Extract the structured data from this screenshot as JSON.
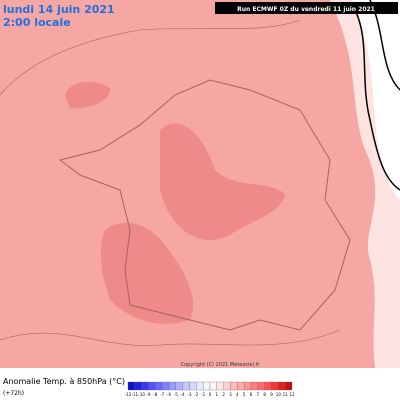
{
  "header": {
    "date": "lundi 14 juin 2021",
    "time": "2:00 locale",
    "run": "Run ECMWF 0Z du vendredi 11 juin 2021"
  },
  "map": {
    "copyright": "Copyright (C) 2021 Meteociel.fr"
  },
  "footer": {
    "title": "Anomalie Temp. à 850hPa (°C)",
    "lead": "(+72h)"
  },
  "legend": {
    "ticks": [
      -12,
      -11,
      -10,
      -9,
      -8,
      -7,
      -6,
      -5,
      -4,
      -3,
      -2,
      -1,
      0,
      1,
      2,
      3,
      4,
      5,
      6,
      7,
      8,
      9,
      10,
      11,
      12
    ],
    "colors": [
      "#1010c8",
      "#2020e0",
      "#3838f0",
      "#5050ff",
      "#6868ff",
      "#8080ff",
      "#9898ff",
      "#b0b0ff",
      "#c8c8ff",
      "#d8d8ff",
      "#e8e8ff",
      "#f4f4ff",
      "#fff4f4",
      "#ffe4e4",
      "#ffd0d0",
      "#ffbcbc",
      "#ffa8a8",
      "#ff9494",
      "#ff8080",
      "#ff6868",
      "#ff5050",
      "#f03838",
      "#e02020",
      "#c81010"
    ]
  }
}
